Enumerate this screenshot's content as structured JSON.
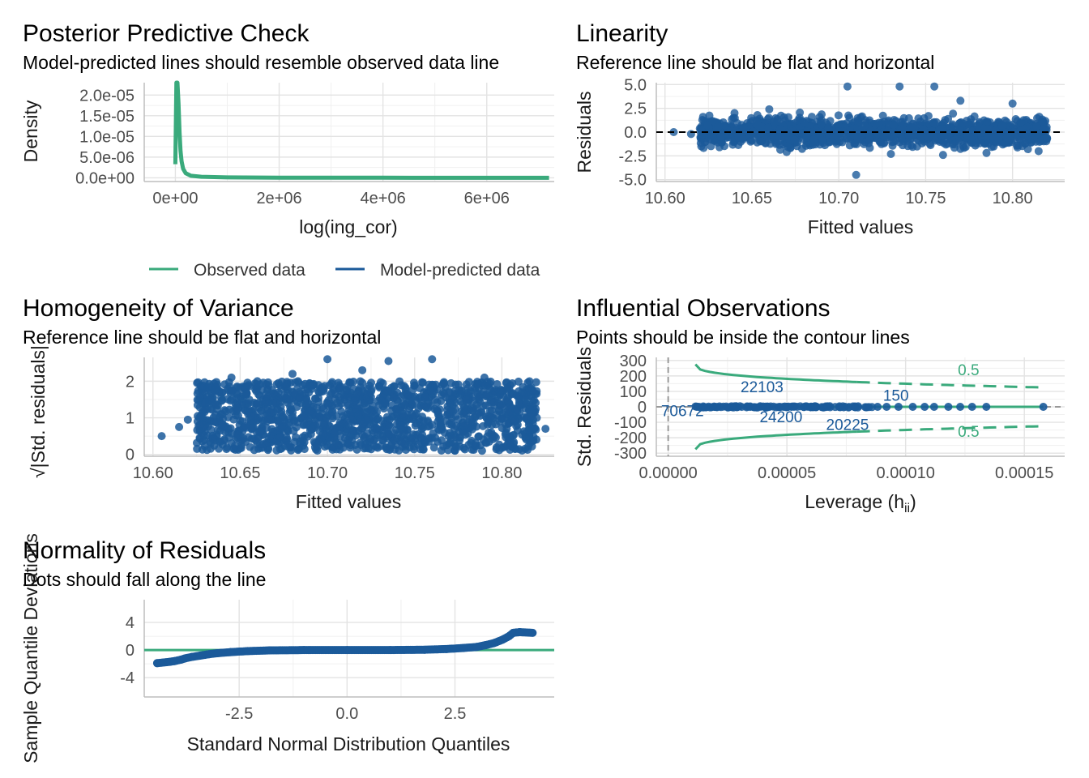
{
  "colors": {
    "observed": "#3aaa7c",
    "predicted": "#1b5a9a",
    "grid": "#e3e3e3",
    "reference": "#000000"
  },
  "legend": {
    "observed_label": "Observed data",
    "predicted_label": "Model-predicted data"
  },
  "chart_data": [
    {
      "id": "ppc",
      "type": "line",
      "title": "Posterior Predictive Check",
      "subtitle": "Model-predicted lines should resemble observed data line",
      "xlabel": "log(ing_cor)",
      "ylabel": "Density",
      "xlim": [
        -600000,
        7300000
      ],
      "ylim": [
        -9e-07,
        2.3e-05
      ],
      "x_ticks": [
        0,
        2000000,
        4000000,
        6000000
      ],
      "x_tick_labels": [
        "0e+00",
        "2e+06",
        "4e+06",
        "6e+06"
      ],
      "y_ticks": [
        0,
        5e-06,
        1e-05,
        1.5e-05,
        2e-05
      ],
      "y_tick_labels": [
        "0.0e+00",
        "5.0e-06",
        "1.0e-05",
        "1.5e-05",
        "2.0e-05"
      ],
      "series": [
        {
          "name": "Observed data",
          "x": [
            0,
            20000,
            40000,
            60000,
            80000,
            100000,
            120000,
            150000,
            200000,
            300000,
            500000,
            1000000,
            2000000,
            4000000,
            6000000,
            7200000
          ],
          "y": [
            3.3e-06,
            2.3e-05,
            2.3e-05,
            1.8e-05,
            1.1e-05,
            6.5e-06,
            4e-06,
            2.2e-06,
            1.1e-06,
            5e-07,
            2.5e-07,
            1e-07,
            5e-08,
            2e-08,
            1e-08,
            1e-08
          ]
        }
      ]
    },
    {
      "id": "linearity",
      "type": "scatter",
      "title": "Linearity",
      "subtitle": "Reference line should be flat and horizontal",
      "xlabel": "Fitted values",
      "ylabel": "Residuals",
      "xlim": [
        10.595,
        10.83
      ],
      "ylim": [
        -5.2,
        5.2
      ],
      "x_ticks": [
        10.6,
        10.65,
        10.7,
        10.75,
        10.8
      ],
      "x_tick_labels": [
        "10.60",
        "10.65",
        "10.70",
        "10.75",
        "10.80"
      ],
      "y_ticks": [
        -5,
        -2.5,
        0,
        2.5,
        5
      ],
      "y_tick_labels": [
        "-5.0",
        "-2.5",
        "0.0",
        "2.5",
        "5.0"
      ],
      "band": {
        "x_range": [
          10.62,
          10.82
        ],
        "y_range": [
          -1.8,
          1.8
        ]
      },
      "outliers": [
        {
          "x": 10.605,
          "y": 0.0
        },
        {
          "x": 10.615,
          "y": -0.2
        },
        {
          "x": 10.64,
          "y": 2.0
        },
        {
          "x": 10.67,
          "y": -2.1
        },
        {
          "x": 10.705,
          "y": 4.8
        },
        {
          "x": 10.735,
          "y": 4.8
        },
        {
          "x": 10.755,
          "y": 4.8
        },
        {
          "x": 10.71,
          "y": -4.5
        },
        {
          "x": 10.73,
          "y": -2.3
        },
        {
          "x": 10.77,
          "y": 3.3
        },
        {
          "x": 10.8,
          "y": 3.0
        },
        {
          "x": 10.785,
          "y": -2.2
        },
        {
          "x": 10.815,
          "y": -2.0
        },
        {
          "x": 10.66,
          "y": 2.4
        },
        {
          "x": 10.76,
          "y": -2.4
        }
      ],
      "reference_y": 0
    },
    {
      "id": "homogeneity",
      "type": "scatter",
      "title": "Homogeneity of Variance",
      "subtitle": "Reference line should be flat and horizontal",
      "xlabel": "Fitted values",
      "ylabel": "√|Std. residuals|",
      "xlim": [
        10.595,
        10.83
      ],
      "ylim": [
        -0.05,
        2.65
      ],
      "x_ticks": [
        10.6,
        10.65,
        10.7,
        10.75,
        10.8
      ],
      "x_tick_labels": [
        "10.60",
        "10.65",
        "10.70",
        "10.75",
        "10.80"
      ],
      "y_ticks": [
        0,
        1,
        2
      ],
      "y_tick_labels": [
        "0",
        "1",
        "2"
      ],
      "band": {
        "x_range": [
          10.625,
          10.82
        ],
        "y_range": [
          0.1,
          2.0
        ]
      },
      "outliers": [
        {
          "x": 10.605,
          "y": 0.5
        },
        {
          "x": 10.615,
          "y": 0.75
        },
        {
          "x": 10.62,
          "y": 0.95
        },
        {
          "x": 10.645,
          "y": 2.1
        },
        {
          "x": 10.7,
          "y": 2.6
        },
        {
          "x": 10.735,
          "y": 2.55
        },
        {
          "x": 10.76,
          "y": 2.6
        },
        {
          "x": 10.72,
          "y": 2.3
        },
        {
          "x": 10.79,
          "y": 2.1
        },
        {
          "x": 10.82,
          "y": 1.0
        },
        {
          "x": 10.825,
          "y": 0.7
        },
        {
          "x": 10.68,
          "y": 2.2
        }
      ]
    },
    {
      "id": "influence",
      "type": "scatter",
      "title": "Influential Observations",
      "subtitle": "Points should be inside the contour lines",
      "xlabel": "Leverage (h",
      "xlabel_sub": "ii",
      "xlabel_suffix": ")",
      "ylabel": "Std. Residuals",
      "xlim": [
        -5e-06,
        0.000167
      ],
      "ylim": [
        -320,
        320
      ],
      "x_ticks": [
        0,
        5e-05,
        0.0001,
        0.00015
      ],
      "x_tick_labels": [
        "0.00000",
        "0.00005",
        "0.00010",
        "0.00015"
      ],
      "y_ticks": [
        -300,
        -200,
        -100,
        0,
        100,
        200,
        300
      ],
      "y_tick_labels": [
        "-300",
        "-200",
        "-100",
        "0",
        "100",
        "200",
        "300"
      ],
      "contour_level": 0.5,
      "contour_labels": [
        "0.5",
        "0.5"
      ],
      "points": [
        {
          "x": 1.15e-05,
          "y": 2
        },
        {
          "x": 1.2e-05,
          "y": 1
        },
        {
          "x": 1.3e-05,
          "y": 0
        },
        {
          "x": 4e-05,
          "y": 2
        },
        {
          "x": 6e-05,
          "y": -3
        },
        {
          "x": 8e-05,
          "y": 3
        },
        {
          "x": 8.82e-05,
          "y": 0
        },
        {
          "x": 9.2e-05,
          "y": 0
        },
        {
          "x": 9.7e-05,
          "y": 0
        },
        {
          "x": 0.000103,
          "y": 0
        },
        {
          "x": 0.000108,
          "y": 0
        },
        {
          "x": 0.000112,
          "y": 0
        },
        {
          "x": 0.000118,
          "y": 0
        },
        {
          "x": 0.000123,
          "y": 0
        },
        {
          "x": 0.000128,
          "y": 0
        },
        {
          "x": 0.000134,
          "y": 0
        },
        {
          "x": 0.000158,
          "y": 0
        }
      ],
      "labels": [
        {
          "text": "22103",
          "x": 3.05e-05,
          "y": 95
        },
        {
          "text": "150",
          "x": 9.05e-05,
          "y": 40
        },
        {
          "text": "70672",
          "x": -3e-06,
          "y": -60
        },
        {
          "text": "24200",
          "x": 3.85e-05,
          "y": -100
        },
        {
          "text": "20225",
          "x": 6.65e-05,
          "y": -150
        }
      ]
    },
    {
      "id": "normality",
      "type": "scatter",
      "title": "Normality of Residuals",
      "subtitle": "Dots should fall along the line",
      "xlabel": "Standard Normal Distribution Quantiles",
      "ylabel": "Sample Quantile Deviations",
      "xlim": [
        -4.7,
        4.8
      ],
      "ylim": [
        -6.8,
        7.3
      ],
      "x_ticks": [
        -2.5,
        0,
        2.5
      ],
      "x_tick_labels": [
        "-2.5",
        "0.0",
        "2.5"
      ],
      "y_ticks": [
        -4,
        0,
        4
      ],
      "y_tick_labels": [
        "-4",
        "0",
        "4"
      ],
      "reference_y": 0,
      "qq_points": [
        {
          "x": -4.4,
          "y": -1.9
        },
        {
          "x": -4.1,
          "y": -1.7
        },
        {
          "x": -4.0,
          "y": -1.6
        },
        {
          "x": -3.85,
          "y": -1.4
        },
        {
          "x": -3.75,
          "y": -1.2
        },
        {
          "x": -3.6,
          "y": -1.0
        },
        {
          "x": -3.4,
          "y": -0.8
        },
        {
          "x": -3.2,
          "y": -0.6
        },
        {
          "x": -3.0,
          "y": -0.45
        },
        {
          "x": -2.7,
          "y": -0.3
        },
        {
          "x": -2.3,
          "y": -0.15
        },
        {
          "x": -1.8,
          "y": -0.05
        },
        {
          "x": -1.0,
          "y": 0.0
        },
        {
          "x": 0.0,
          "y": 0.0
        },
        {
          "x": 1.0,
          "y": 0.0
        },
        {
          "x": 1.8,
          "y": 0.05
        },
        {
          "x": 2.3,
          "y": 0.15
        },
        {
          "x": 2.7,
          "y": 0.3
        },
        {
          "x": 3.0,
          "y": 0.45
        },
        {
          "x": 3.2,
          "y": 0.7
        },
        {
          "x": 3.4,
          "y": 1.0
        },
        {
          "x": 3.6,
          "y": 1.5
        },
        {
          "x": 3.75,
          "y": 2.0
        },
        {
          "x": 3.85,
          "y": 2.5
        },
        {
          "x": 4.0,
          "y": 2.6
        },
        {
          "x": 4.3,
          "y": 2.5
        }
      ]
    }
  ]
}
